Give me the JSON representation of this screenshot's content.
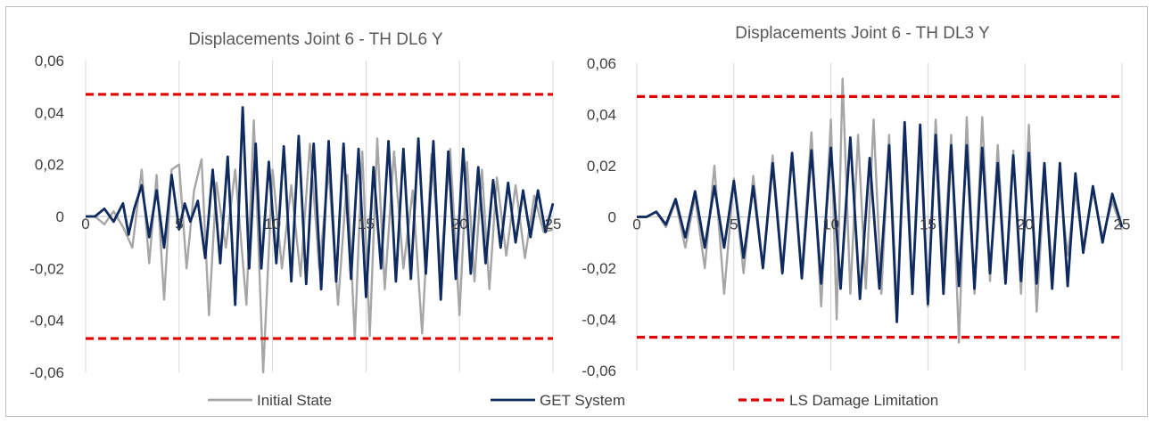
{
  "chart_data": [
    {
      "type": "line",
      "title": "Displacements Joint 6 - TH DL6 Y",
      "xlabel": "",
      "ylabel": "",
      "xlim": [
        0,
        25
      ],
      "ylim": [
        -0.06,
        0.06
      ],
      "xticks": [
        "0",
        "5",
        "10",
        "15",
        "20",
        "25"
      ],
      "yticks": [
        "0,06",
        "0,04",
        "0,02",
        "0",
        "-0,02",
        "-0,04",
        "-0,06"
      ],
      "grid": "vertical",
      "series": [
        {
          "name": "Initial State",
          "color": "#a6a6a6",
          "x": [
            0,
            0.5,
            1,
            1.5,
            2,
            2.5,
            3,
            3.4,
            3.8,
            4.2,
            4.6,
            5,
            5.4,
            5.8,
            6.2,
            6.6,
            7,
            7.5,
            8,
            8.6,
            9,
            9.5,
            10,
            10.5,
            11,
            11.5,
            12,
            12.5,
            13,
            13.5,
            14,
            14.4,
            14.8,
            15.2,
            15.6,
            16,
            16.5,
            17,
            17.5,
            18,
            18.5,
            19,
            19.5,
            20,
            20.4,
            20.8,
            21.2,
            21.6,
            22,
            22.5,
            23,
            23.5,
            24,
            24.5,
            25
          ],
          "y": [
            0,
            0,
            -0.003,
            0.002,
            -0.004,
            -0.012,
            0.018,
            -0.018,
            0.016,
            -0.032,
            0.018,
            0.02,
            -0.02,
            0.01,
            0.022,
            -0.038,
            0.013,
            -0.012,
            0.018,
            -0.034,
            0.037,
            -0.06,
            0.018,
            -0.02,
            0.012,
            -0.023,
            0.028,
            -0.02,
            0.018,
            -0.034,
            0.016,
            -0.047,
            0.025,
            -0.046,
            0.03,
            -0.028,
            0.025,
            -0.02,
            0.01,
            -0.045,
            0.024,
            -0.02,
            0.026,
            -0.038,
            0.021,
            -0.025,
            0.018,
            -0.028,
            0.015,
            -0.015,
            0.012,
            -0.016,
            0.008,
            -0.006,
            -0.005
          ]
        },
        {
          "name": "GET System",
          "color": "#0f2a5e",
          "x": [
            0,
            0.5,
            1,
            1.5,
            2,
            2.3,
            2.6,
            3,
            3.4,
            3.8,
            4.2,
            4.6,
            5,
            5.3,
            5.6,
            6,
            6.4,
            6.8,
            7.2,
            7.6,
            8,
            8.4,
            8.75,
            9.1,
            9.4,
            9.8,
            10.2,
            10.6,
            11,
            11.4,
            11.8,
            12.2,
            12.6,
            13,
            13.4,
            13.8,
            14.2,
            14.6,
            15,
            15.4,
            15.8,
            16.2,
            16.6,
            17,
            17.4,
            17.8,
            18.2,
            18.6,
            19,
            19.4,
            19.8,
            20.2,
            20.6,
            21,
            21.4,
            21.8,
            22.2,
            22.6,
            23,
            23.4,
            23.8,
            24.2,
            24.6,
            25
          ],
          "y": [
            0,
            0,
            0.003,
            -0.002,
            0.005,
            -0.007,
            0.003,
            0.012,
            -0.008,
            0.01,
            -0.012,
            0.016,
            -0.005,
            0.005,
            -0.002,
            0.006,
            -0.016,
            0.018,
            -0.018,
            0.023,
            -0.034,
            0.042,
            -0.02,
            0.028,
            -0.02,
            0.021,
            -0.018,
            0.027,
            -0.025,
            0.031,
            -0.026,
            0.028,
            -0.028,
            0.029,
            -0.025,
            0.028,
            -0.024,
            0.026,
            -0.031,
            0.019,
            -0.02,
            0.029,
            -0.025,
            0.026,
            -0.024,
            0.03,
            -0.022,
            0.029,
            -0.032,
            0.025,
            -0.024,
            0.026,
            -0.022,
            0.019,
            -0.018,
            0.014,
            -0.012,
            0.013,
            -0.01,
            0.01,
            -0.008,
            0.01,
            -0.006,
            0.005
          ]
        },
        {
          "name": "LS Damage Limitation",
          "color": "#e00000",
          "dashed": true,
          "x": [
            0,
            25
          ],
          "y_upper": 0.047,
          "y_lower": -0.047
        }
      ]
    },
    {
      "type": "line",
      "title": "Displacements Joint 6 - TH DL3 Y",
      "xlabel": "",
      "ylabel": "",
      "xlim": [
        0,
        25
      ],
      "ylim": [
        -0.06,
        0.06
      ],
      "xticks": [
        "0",
        "5",
        "10",
        "15",
        "20",
        "25"
      ],
      "yticks": [
        "0,06",
        "0,04",
        "0,02",
        "0",
        "-0,02",
        "-0,04",
        "-0,06"
      ],
      "grid": "vertical",
      "series": [
        {
          "name": "Initial State",
          "color": "#a6a6a6",
          "x": [
            0,
            0.5,
            1,
            1.5,
            2,
            2.5,
            3,
            3.5,
            4,
            4.5,
            5,
            5.5,
            6,
            6.5,
            7,
            7.5,
            8,
            8.5,
            9,
            9.5,
            10,
            10.3,
            10.6,
            11,
            11.4,
            11.8,
            12.2,
            12.6,
            13,
            13.4,
            13.8,
            14.2,
            14.6,
            15,
            15.4,
            15.8,
            16.2,
            16.6,
            17,
            17.4,
            17.8,
            18.2,
            18.6,
            19,
            19.4,
            19.8,
            20.2,
            20.6,
            21,
            21.4,
            21.8,
            22.2,
            22.6,
            23,
            23.5,
            24,
            24.5,
            25
          ],
          "y": [
            0,
            0,
            0.002,
            -0.004,
            0.006,
            -0.012,
            0.008,
            -0.02,
            0.02,
            -0.03,
            0.015,
            -0.022,
            0.016,
            -0.02,
            0.024,
            -0.02,
            0.024,
            -0.022,
            0.033,
            -0.035,
            0.038,
            -0.04,
            0.054,
            -0.03,
            0.032,
            -0.028,
            0.038,
            -0.03,
            0.032,
            -0.035,
            0.026,
            -0.03,
            0.028,
            -0.035,
            0.038,
            -0.02,
            0.032,
            -0.049,
            0.039,
            -0.03,
            0.039,
            -0.025,
            0.028,
            -0.025,
            0.026,
            -0.03,
            0.036,
            -0.037,
            0.015,
            -0.02,
            0.012,
            -0.015,
            0.01,
            -0.012,
            0.01,
            -0.008,
            0.006,
            -0.005
          ]
        },
        {
          "name": "GET System",
          "color": "#0f2a5e",
          "x": [
            0,
            0.5,
            1,
            1.5,
            2,
            2.5,
            3,
            3.5,
            4,
            4.5,
            5,
            5.5,
            6,
            6.5,
            7,
            7.5,
            8,
            8.5,
            9,
            9.5,
            10,
            10.5,
            11,
            11.5,
            12,
            12.5,
            13,
            13.4,
            13.8,
            14.2,
            14.6,
            15,
            15.4,
            15.8,
            16.2,
            16.6,
            17,
            17.4,
            17.8,
            18.2,
            18.6,
            19,
            19.4,
            19.8,
            20.2,
            20.6,
            21,
            21.4,
            21.8,
            22.2,
            22.6,
            23,
            23.5,
            24,
            24.5,
            25
          ],
          "y": [
            0,
            0,
            0.002,
            -0.003,
            0.007,
            -0.008,
            0.01,
            -0.012,
            0.012,
            -0.012,
            0.014,
            -0.016,
            0.012,
            -0.02,
            0.021,
            -0.022,
            0.025,
            -0.024,
            0.026,
            -0.026,
            0.027,
            -0.028,
            0.031,
            -0.032,
            0.023,
            -0.028,
            0.028,
            -0.041,
            0.037,
            -0.03,
            0.036,
            -0.034,
            0.032,
            -0.03,
            0.028,
            -0.027,
            0.028,
            -0.028,
            0.027,
            -0.022,
            0.021,
            -0.026,
            0.024,
            -0.025,
            0.025,
            -0.026,
            0.021,
            -0.028,
            0.021,
            -0.027,
            0.017,
            -0.014,
            0.012,
            -0.01,
            0.009,
            -0.004
          ]
        },
        {
          "name": "LS Damage Limitation",
          "color": "#e00000",
          "dashed": true,
          "x": [
            0,
            25
          ],
          "y_upper": 0.047,
          "y_lower": -0.047
        }
      ]
    }
  ],
  "legend": {
    "position": "bottom",
    "items": [
      {
        "label": "Initial State",
        "color": "#a6a6a6",
        "style": "solid"
      },
      {
        "label": "GET System",
        "color": "#0f2a5e",
        "style": "solid"
      },
      {
        "label": "LS Damage Limitation",
        "color": "#e00000",
        "style": "dashed"
      }
    ]
  }
}
